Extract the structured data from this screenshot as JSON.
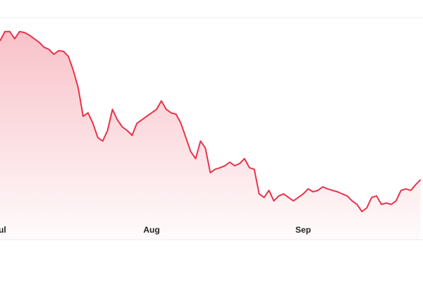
{
  "chart_data": {
    "type": "area",
    "x": [
      0,
      1,
      2,
      3,
      4,
      5,
      6,
      7,
      8,
      9,
      10,
      11,
      12,
      13,
      14,
      15,
      16,
      17,
      18,
      19,
      20,
      21,
      22,
      23,
      24,
      25,
      26,
      27,
      28,
      29,
      30,
      31,
      32,
      33,
      34,
      35,
      36,
      37,
      38,
      39,
      40,
      41,
      42,
      43,
      44,
      45,
      46,
      47,
      48,
      49,
      50,
      51,
      52,
      53,
      54,
      55,
      56,
      57,
      58,
      59,
      60,
      61,
      62,
      63,
      64,
      65,
      66,
      67,
      68,
      69,
      70,
      71,
      72,
      73,
      74,
      75,
      76,
      77,
      78,
      79,
      80,
      81,
      82,
      83,
      84,
      85,
      86
    ],
    "values": [
      89.5,
      93.7,
      93.7,
      90.5,
      93.7,
      93.3,
      92.1,
      90.5,
      88.9,
      86.7,
      85.7,
      83.5,
      85.1,
      84.8,
      82.5,
      76.2,
      68.3,
      55.6,
      57.1,
      52.4,
      46.0,
      44.4,
      49.2,
      58.7,
      54.0,
      50.8,
      49.2,
      47.0,
      52.4,
      54.0,
      55.6,
      57.1,
      58.7,
      62.5,
      58.7,
      57.1,
      56.5,
      52.4,
      46.0,
      39.7,
      36.5,
      44.4,
      41.3,
      30.2,
      31.7,
      32.4,
      33.3,
      34.9,
      33.3,
      34.3,
      36.5,
      32.4,
      31.7,
      20.6,
      19.0,
      22.2,
      17.5,
      19.7,
      20.6,
      19.0,
      17.5,
      19.0,
      20.6,
      22.9,
      21.6,
      22.2,
      23.8,
      22.9,
      22.2,
      21.6,
      20.6,
      19.7,
      17.5,
      15.9,
      12.7,
      14.3,
      19.0,
      19.7,
      15.9,
      16.5,
      15.9,
      17.5,
      22.2,
      22.9,
      22.2,
      24.8,
      27.0
    ],
    "color": "#e8334a",
    "xlim": [
      0,
      86.5
    ],
    "xticks": [
      {
        "value": 0,
        "label": "Jul"
      },
      {
        "value": 31,
        "label": "Aug"
      },
      {
        "value": 62,
        "label": "Sep"
      }
    ],
    "ylim": [
      0,
      100
    ]
  }
}
